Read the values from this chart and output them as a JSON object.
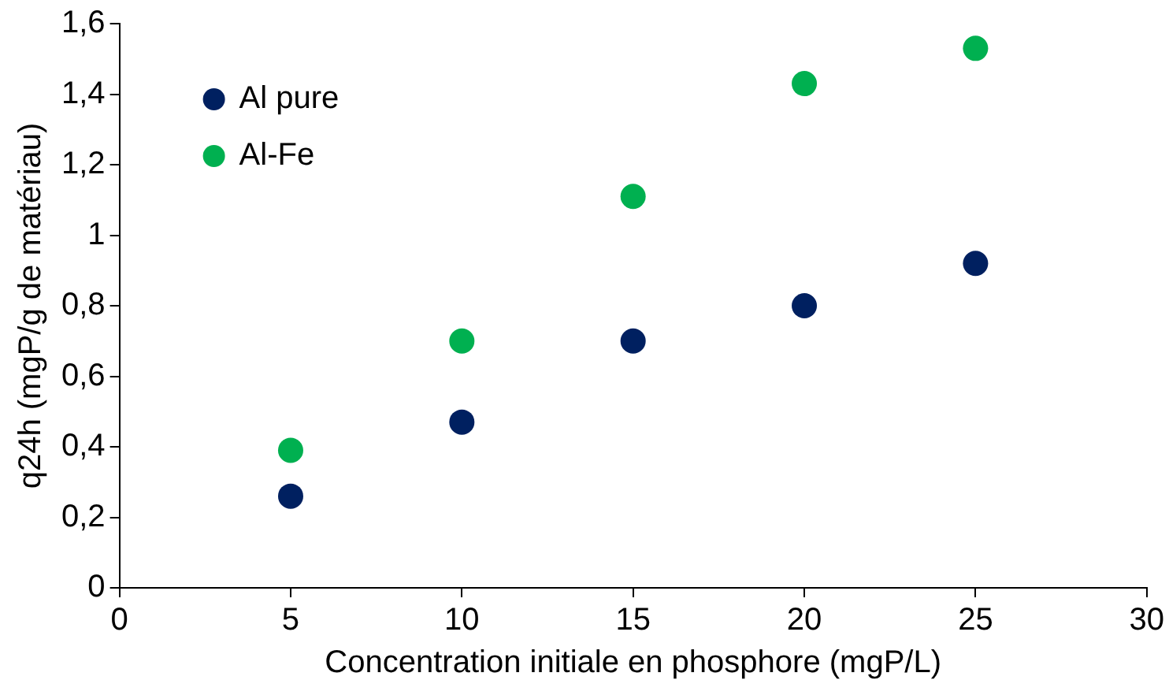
{
  "chart_data": {
    "type": "scatter",
    "xlabel": "Concentration initiale en phosphore (mgP/L)",
    "ylabel": "q24h (mgP/g de matériau)",
    "x": [
      5,
      10,
      15,
      20,
      25
    ],
    "series": [
      {
        "name": "Al pure",
        "color": "#002060",
        "values": [
          0.26,
          0.47,
          0.7,
          0.8,
          0.92
        ]
      },
      {
        "name": "Al-Fe",
        "color": "#00b050",
        "values": [
          0.39,
          0.7,
          1.11,
          1.43,
          1.53
        ]
      }
    ],
    "xlim": [
      0,
      30
    ],
    "xticks": [
      0,
      5,
      10,
      15,
      20,
      25,
      30
    ],
    "ylim": [
      0,
      1.6
    ],
    "yticks": [
      0,
      {
        "value": 0.2,
        "label": "0,2"
      },
      {
        "value": 0.4,
        "label": "0,4"
      },
      {
        "value": 0.6,
        "label": "0,6"
      },
      {
        "value": 0.8,
        "label": "0,8"
      },
      1,
      {
        "value": 1.2,
        "label": "1,2"
      },
      {
        "value": 1.4,
        "label": "1,4"
      },
      {
        "value": 1.6,
        "label": "1,6"
      }
    ],
    "grid": false,
    "legend": "top left",
    "marker": "circle"
  }
}
